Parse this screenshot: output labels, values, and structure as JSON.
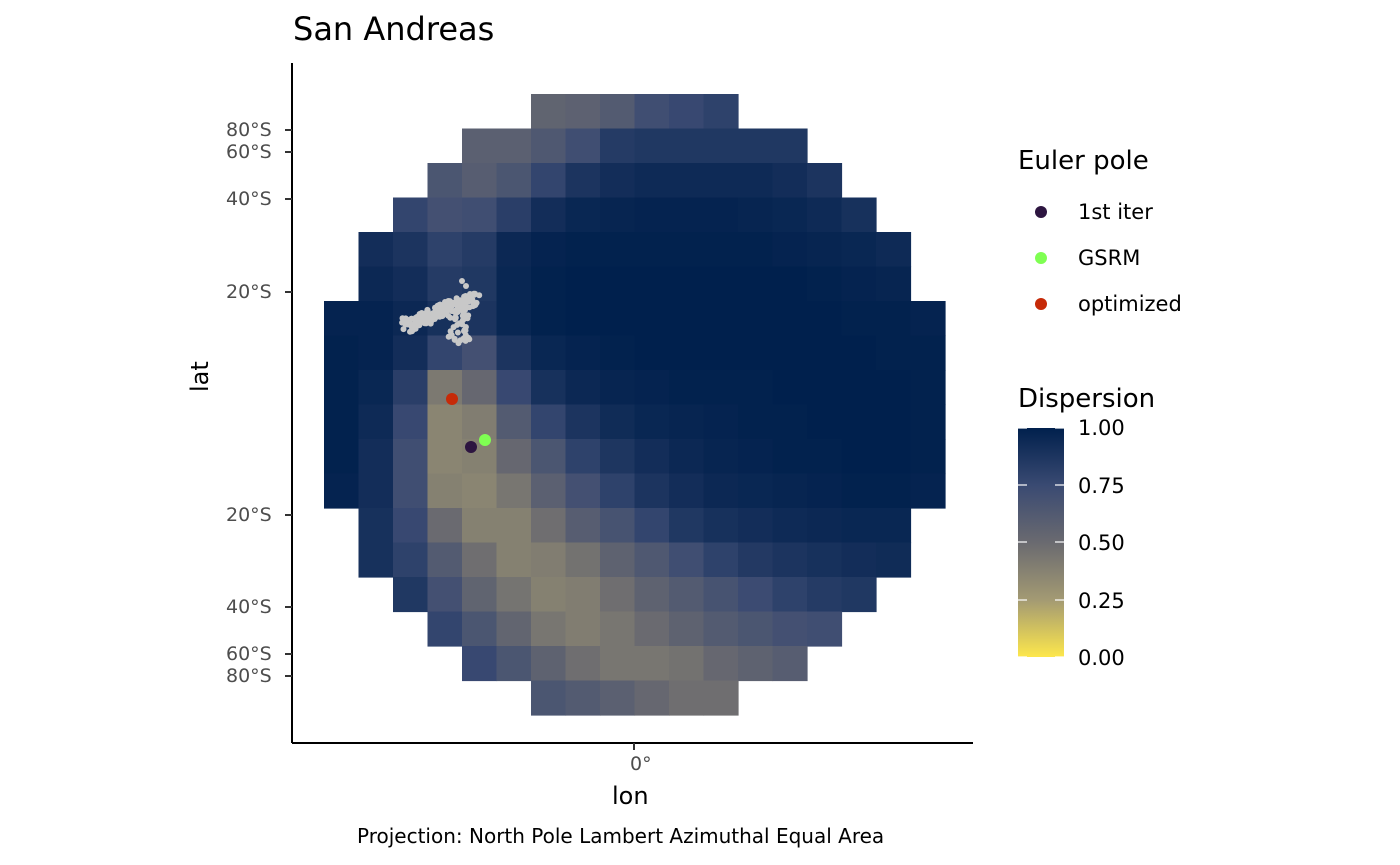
{
  "title": "San Andreas",
  "caption": "Projection: North Pole Lambert Azimuthal Equal Area",
  "chart_data": {
    "type": "heatmap",
    "title": "San Andreas",
    "xlabel": "lon",
    "ylabel": "lat",
    "x_ticks": [
      "0°"
    ],
    "y_ticks_upper": [
      "80°S",
      "60°S",
      "40°S",
      "20°S"
    ],
    "y_ticks_lower": [
      "20°S",
      "40°S",
      "60°S",
      "80°S"
    ],
    "color_scale": {
      "title": "Dispersion",
      "range": [
        0,
        1
      ],
      "breaks": [
        "1.00",
        "0.75",
        "0.50",
        "0.25",
        "0.00"
      ],
      "colors": [
        "#fde74c",
        "#a39a73",
        "#6a6a70",
        "#3a4a72",
        "#00204d"
      ]
    },
    "grid_rows": [
      {
        "start": 6,
        "values": [
          0.55,
          0.57,
          0.62,
          0.72,
          0.76,
          0.8
        ]
      },
      {
        "start": 4,
        "values": [
          0.58,
          0.58,
          0.64,
          0.72,
          0.84,
          0.86,
          0.86,
          0.86,
          0.86,
          0.86
        ]
      },
      {
        "start": 3,
        "values": [
          0.66,
          0.6,
          0.66,
          0.78,
          0.88,
          0.92,
          0.94,
          0.94,
          0.94,
          0.94,
          0.92,
          0.88
        ]
      },
      {
        "start": 2,
        "values": [
          0.78,
          0.7,
          0.72,
          0.82,
          0.92,
          0.96,
          0.97,
          0.98,
          0.98,
          0.98,
          0.97,
          0.96,
          0.94,
          0.9
        ]
      },
      {
        "start": 1,
        "values": [
          0.92,
          0.88,
          0.8,
          0.84,
          0.95,
          0.98,
          0.99,
          0.99,
          0.99,
          0.99,
          0.99,
          0.99,
          0.98,
          0.97,
          0.96,
          0.94
        ]
      },
      {
        "start": 1,
        "values": [
          0.95,
          0.92,
          0.84,
          0.86,
          0.96,
          0.99,
          1.0,
          1.0,
          1.0,
          1.0,
          1.0,
          1.0,
          1.0,
          0.99,
          0.98,
          0.97
        ]
      },
      {
        "start": 0,
        "values": [
          0.98,
          0.98,
          0.95,
          0.9,
          0.88,
          0.96,
          0.99,
          1.0,
          1.0,
          1.0,
          1.0,
          1.0,
          1.0,
          1.0,
          1.0,
          0.99,
          0.99,
          0.98
        ]
      },
      {
        "start": 0,
        "values": [
          0.99,
          0.98,
          0.92,
          0.78,
          0.7,
          0.88,
          0.96,
          0.98,
          0.99,
          1.0,
          1.0,
          1.0,
          1.0,
          1.0,
          1.0,
          1.0,
          0.99,
          0.99
        ]
      },
      {
        "start": 0,
        "values": [
          0.99,
          0.96,
          0.82,
          0.42,
          0.52,
          0.76,
          0.9,
          0.95,
          0.97,
          0.98,
          0.99,
          0.99,
          0.99,
          1.0,
          1.0,
          1.0,
          1.0,
          0.99
        ]
      },
      {
        "start": 0,
        "values": [
          0.99,
          0.94,
          0.76,
          0.36,
          0.4,
          0.62,
          0.78,
          0.88,
          0.93,
          0.96,
          0.97,
          0.98,
          0.99,
          0.99,
          1.0,
          1.0,
          1.0,
          0.99
        ]
      },
      {
        "start": 0,
        "values": [
          0.99,
          0.92,
          0.72,
          0.36,
          0.38,
          0.52,
          0.66,
          0.8,
          0.87,
          0.92,
          0.95,
          0.97,
          0.98,
          0.99,
          0.99,
          1.0,
          1.0,
          0.99
        ]
      },
      {
        "start": 0,
        "values": [
          0.98,
          0.92,
          0.72,
          0.38,
          0.36,
          0.44,
          0.58,
          0.7,
          0.8,
          0.88,
          0.92,
          0.95,
          0.96,
          0.97,
          0.98,
          0.99,
          0.99,
          0.98
        ]
      },
      {
        "start": 1,
        "values": [
          0.9,
          0.76,
          0.5,
          0.38,
          0.38,
          0.48,
          0.6,
          0.68,
          0.78,
          0.86,
          0.9,
          0.92,
          0.94,
          0.95,
          0.96,
          0.96
        ]
      },
      {
        "start": 1,
        "values": [
          0.9,
          0.8,
          0.62,
          0.48,
          0.38,
          0.4,
          0.46,
          0.56,
          0.64,
          0.72,
          0.8,
          0.85,
          0.88,
          0.9,
          0.92,
          0.93
        ]
      },
      {
        "start": 2,
        "values": [
          0.86,
          0.7,
          0.55,
          0.45,
          0.38,
          0.4,
          0.48,
          0.56,
          0.62,
          0.68,
          0.74,
          0.8,
          0.84,
          0.86
        ]
      },
      {
        "start": 3,
        "values": [
          0.78,
          0.66,
          0.54,
          0.44,
          0.4,
          0.44,
          0.5,
          0.56,
          0.62,
          0.66,
          0.7,
          0.72
        ]
      },
      {
        "start": 4,
        "values": [
          0.76,
          0.66,
          0.56,
          0.48,
          0.44,
          0.44,
          0.46,
          0.52,
          0.56,
          0.6
        ]
      },
      {
        "start": 6,
        "values": [
          0.66,
          0.62,
          0.58,
          0.52,
          0.48,
          0.48
        ]
      }
    ],
    "points": [
      {
        "name": "1st iter",
        "color": "#2d1540"
      },
      {
        "name": "GSRM",
        "color": "#7fff52"
      },
      {
        "name": "optimized",
        "color": "#c62a08"
      }
    ],
    "observations_color": "#c8c8c8",
    "legend_title": "Euler pole"
  }
}
